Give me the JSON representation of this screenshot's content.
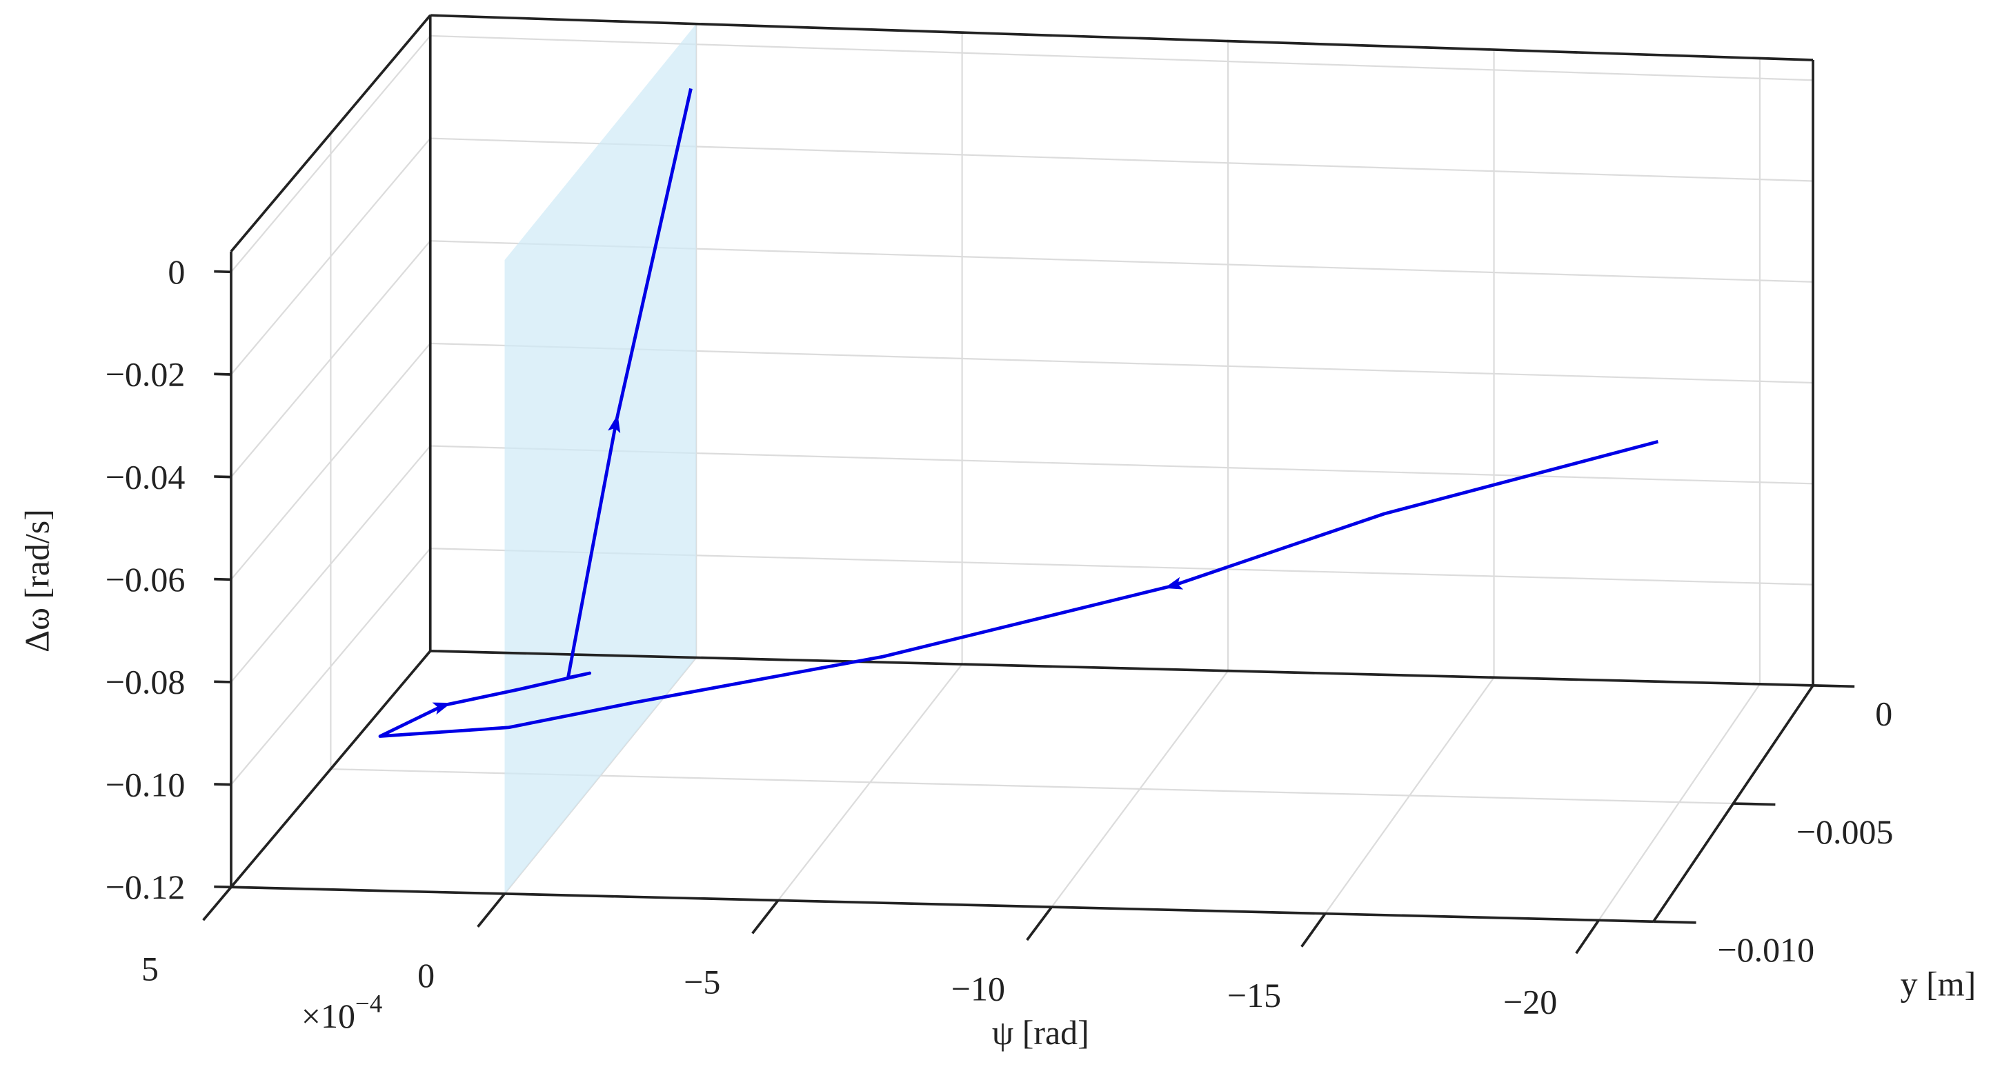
{
  "chart_data": {
    "type": "line3d",
    "xlabel": "ψ [rad]",
    "ylabel": "y [m]",
    "zlabel": "Δω [rad/s]",
    "x_multiplier": {
      "base": "×10",
      "exponent": "−4"
    },
    "xlim": [
      5,
      -21
    ],
    "ylim": [
      -0.01,
      0
    ],
    "zlim": [
      -0.12,
      0.004
    ],
    "xticks": [
      5,
      0,
      {
        "value": -5,
        "label": "−5"
      },
      {
        "value": -10,
        "label": "−10"
      },
      {
        "value": -15,
        "label": "−15"
      },
      {
        "value": -20,
        "label": "−20"
      }
    ],
    "yticks": [
      {
        "value": -0.01,
        "label": "−0.010"
      },
      {
        "value": -0.005,
        "label": "−0.005"
      },
      0
    ],
    "zticks": [
      {
        "value": -0.12,
        "label": "−0.12"
      },
      {
        "value": -0.1,
        "label": "−0.10"
      },
      {
        "value": -0.08,
        "label": "−0.08"
      },
      {
        "value": -0.06,
        "label": "−0.06"
      },
      {
        "value": -0.04,
        "label": "−0.04"
      },
      {
        "value": -0.02,
        "label": "−0.02"
      },
      0
    ],
    "grid": true,
    "plane": {
      "x": 0,
      "color": "#cfeaf7"
    },
    "series": [
      {
        "color": "#0000e6",
        "x": [
          -18.7,
          -13.9,
          -10.1,
          -4.9,
          -0.4,
          1.7,
          3.9,
          2.9,
          1.5,
          0.2,
          0.6,
          0.6,
          0.1
        ],
        "y": [
          -0.002,
          -0.003,
          -0.0035,
          -0.004,
          -0.0045,
          -0.005,
          -0.0055,
          -0.005,
          -0.005,
          -0.005,
          -0.005,
          -0.0025,
          0
        ],
        "z": [
          -0.063,
          -0.074,
          -0.087,
          -0.1,
          -0.108,
          -0.111,
          -0.111,
          -0.107,
          -0.1035,
          -0.1,
          -0.101,
          -0.0625,
          -0.0087
        ]
      }
    ]
  }
}
